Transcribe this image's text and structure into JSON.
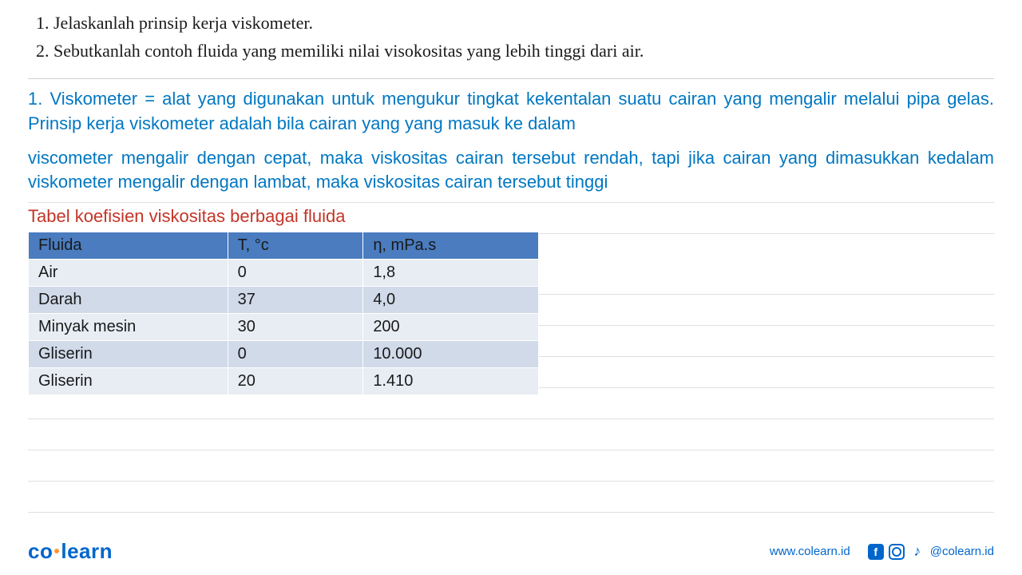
{
  "questions": {
    "items": [
      "Jelaskanlah prinsip kerja viskometer.",
      "Sebutkanlah contoh fluida yang memiliki nilai visokositas yang lebih tinggi dari air."
    ]
  },
  "answers": {
    "block1": "1. Viskometer = alat yang digunakan untuk mengukur tingkat kekentalan suatu cairan yang mengalir melalui pipa gelas. Prinsip kerja viskometer adalah bila cairan yang yang masuk ke dalam",
    "block2": "viscometer mengalir dengan cepat, maka viskositas cairan tersebut rendah, tapi jika cairan yang dimasukkan kedalam viskometer mengalir dengan lambat, maka viskositas cairan tersebut tinggi"
  },
  "table": {
    "title": "Tabel koefisien viskositas berbagai fluida",
    "columns": [
      "Fluida",
      "T, °c",
      "η, mPa.s"
    ],
    "rows": [
      {
        "fluida": "Air",
        "temp": "0",
        "visc": "1,8",
        "shade": "light"
      },
      {
        "fluida": "Darah",
        "temp": "37",
        "visc": "4,0",
        "shade": "dark"
      },
      {
        "fluida": "Minyak mesin",
        "temp": "30",
        "visc": "200",
        "shade": "light"
      },
      {
        "fluida": "Gliserin",
        "temp": "0",
        "visc": "10.000",
        "shade": "dark"
      },
      {
        "fluida": "Gliserin",
        "temp": "20",
        "visc": "1.410",
        "shade": "light"
      }
    ],
    "header_bg": "#4a7cbf",
    "row_light_bg": "#e8edf4",
    "row_dark_bg": "#d0dae9",
    "col_widths": {
      "fluida": 250,
      "temp": 170,
      "visc": 220
    }
  },
  "footer": {
    "logo_left": "co",
    "logo_right": "learn",
    "website": "www.colearn.id",
    "handle": "@colearn.id"
  },
  "colors": {
    "question_text": "#1a1a1a",
    "answer_text": "#0077c2",
    "table_title": "#c43528",
    "brand_blue": "#0066cc",
    "accent_orange": "#ff9933"
  },
  "typography": {
    "question_font": "Georgia, serif",
    "answer_font": "Comic Sans MS, cursive",
    "question_size": 22,
    "answer_size": 22,
    "table_size": 20
  },
  "ruled_line_positions": [
    253,
    292,
    368,
    407,
    446,
    485,
    524,
    563,
    602,
    641
  ]
}
